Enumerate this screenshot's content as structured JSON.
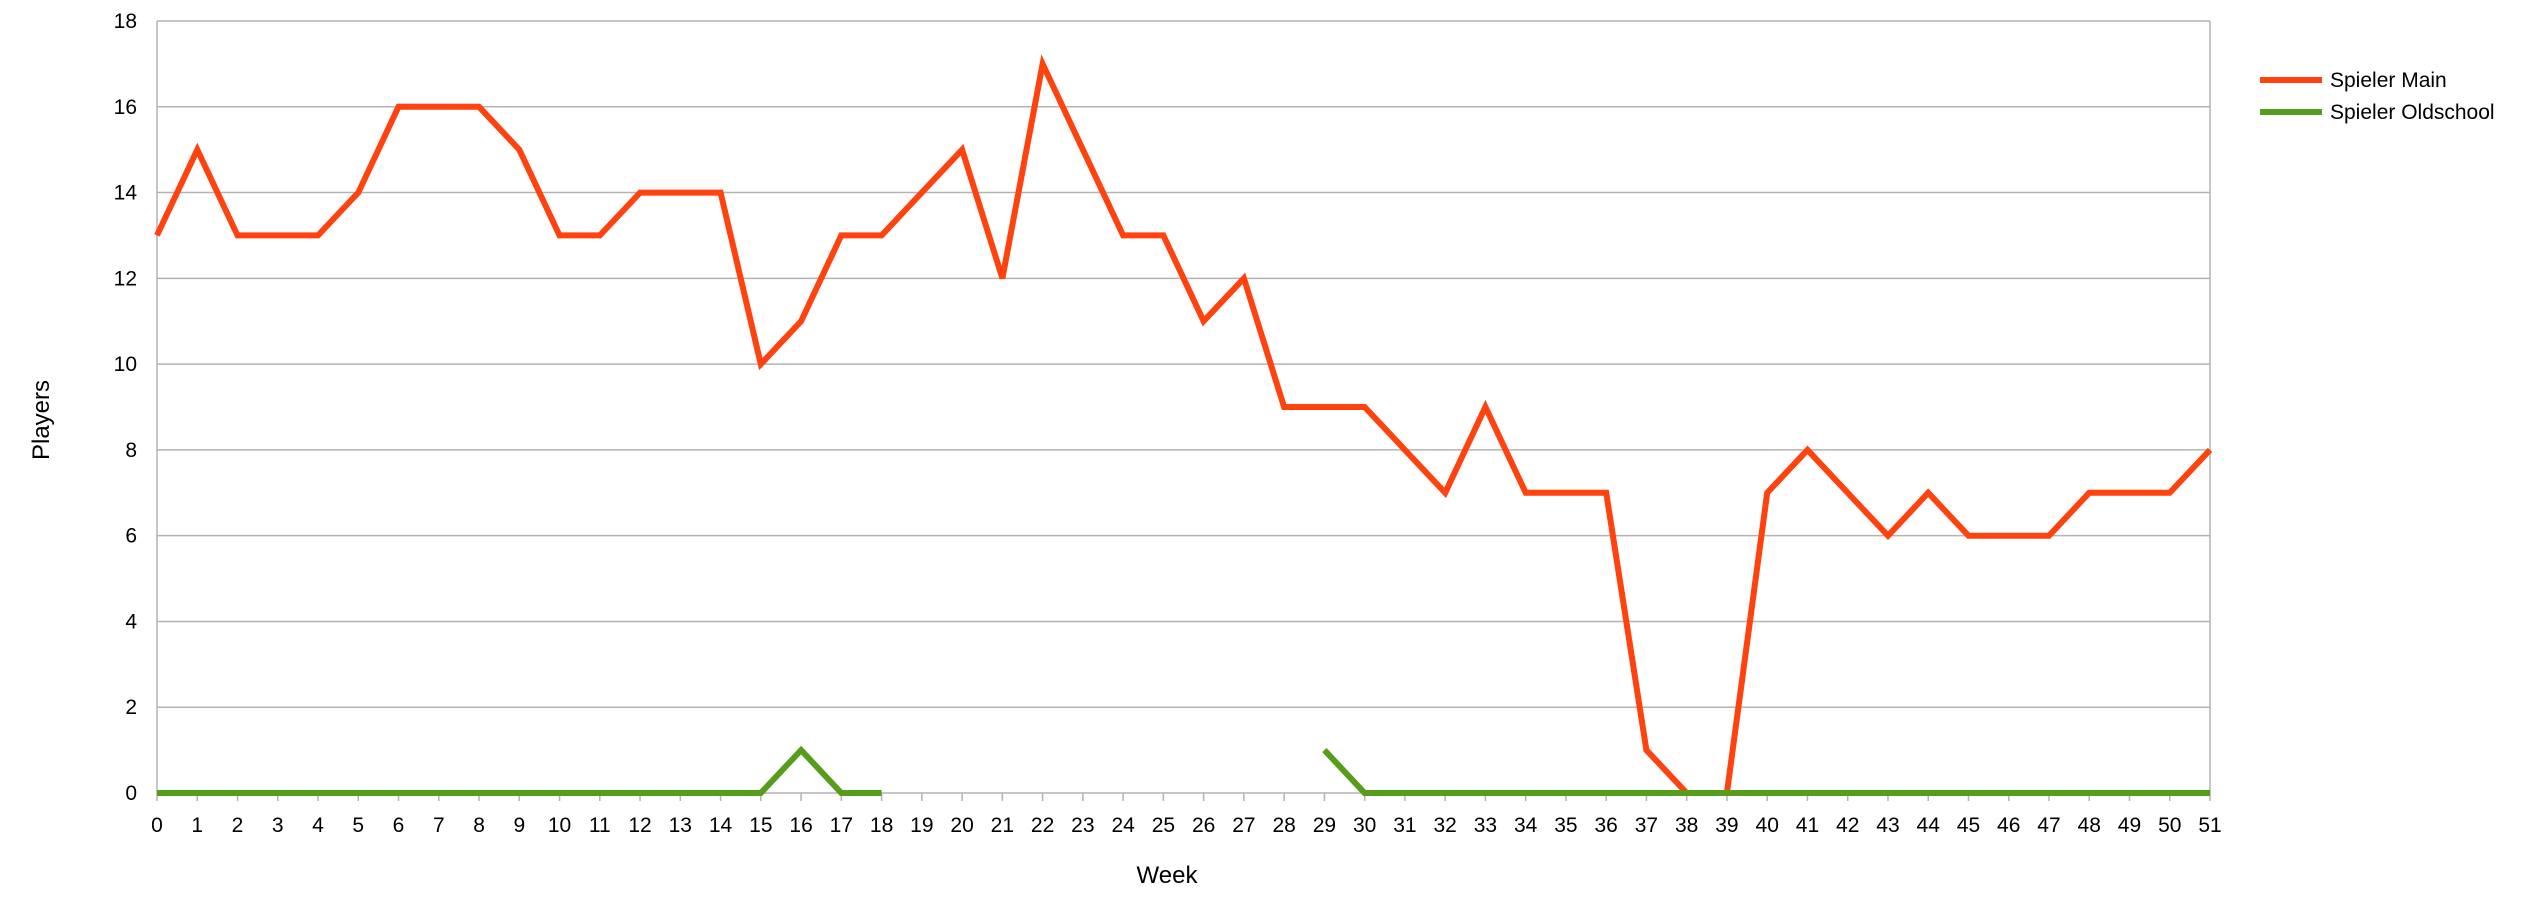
{
  "chart_data": {
    "type": "line",
    "xlabel": "Week",
    "ylabel": "Players",
    "x": [
      0,
      1,
      2,
      3,
      4,
      5,
      6,
      7,
      8,
      9,
      10,
      11,
      12,
      13,
      14,
      15,
      16,
      17,
      18,
      19,
      20,
      21,
      22,
      23,
      24,
      25,
      26,
      27,
      28,
      29,
      30,
      31,
      32,
      33,
      34,
      35,
      36,
      37,
      38,
      39,
      40,
      41,
      42,
      43,
      44,
      45,
      46,
      47,
      48,
      49,
      50,
      51
    ],
    "ylim": [
      0,
      18
    ],
    "yticks": [
      0,
      2,
      4,
      6,
      8,
      10,
      12,
      14,
      16,
      18
    ],
    "grid": true,
    "legend_position": "right",
    "series": [
      {
        "name": "Spieler Main",
        "color": "#ff420e",
        "values": [
          13,
          15,
          13,
          13,
          13,
          14,
          16,
          16,
          16,
          15,
          13,
          13,
          14,
          14,
          14,
          10,
          11,
          13,
          13,
          14,
          15,
          12,
          17,
          15,
          13,
          13,
          11,
          12,
          9,
          9,
          9,
          8,
          7,
          9,
          7,
          7,
          7,
          1,
          0,
          0,
          7,
          8,
          7,
          6,
          7,
          6,
          6,
          6,
          7,
          7,
          7,
          8
        ]
      },
      {
        "name": "Spieler Oldschool",
        "color": "#579d1c",
        "values": [
          0,
          0,
          0,
          0,
          0,
          0,
          0,
          0,
          0,
          0,
          0,
          0,
          0,
          0,
          0,
          0,
          1,
          0,
          0,
          null,
          null,
          null,
          null,
          null,
          null,
          null,
          null,
          null,
          null,
          1,
          0,
          0,
          0,
          0,
          0,
          0,
          0,
          0,
          0,
          0,
          0,
          0,
          0,
          0,
          0,
          0,
          0,
          0,
          0,
          0,
          0,
          0
        ]
      }
    ]
  }
}
